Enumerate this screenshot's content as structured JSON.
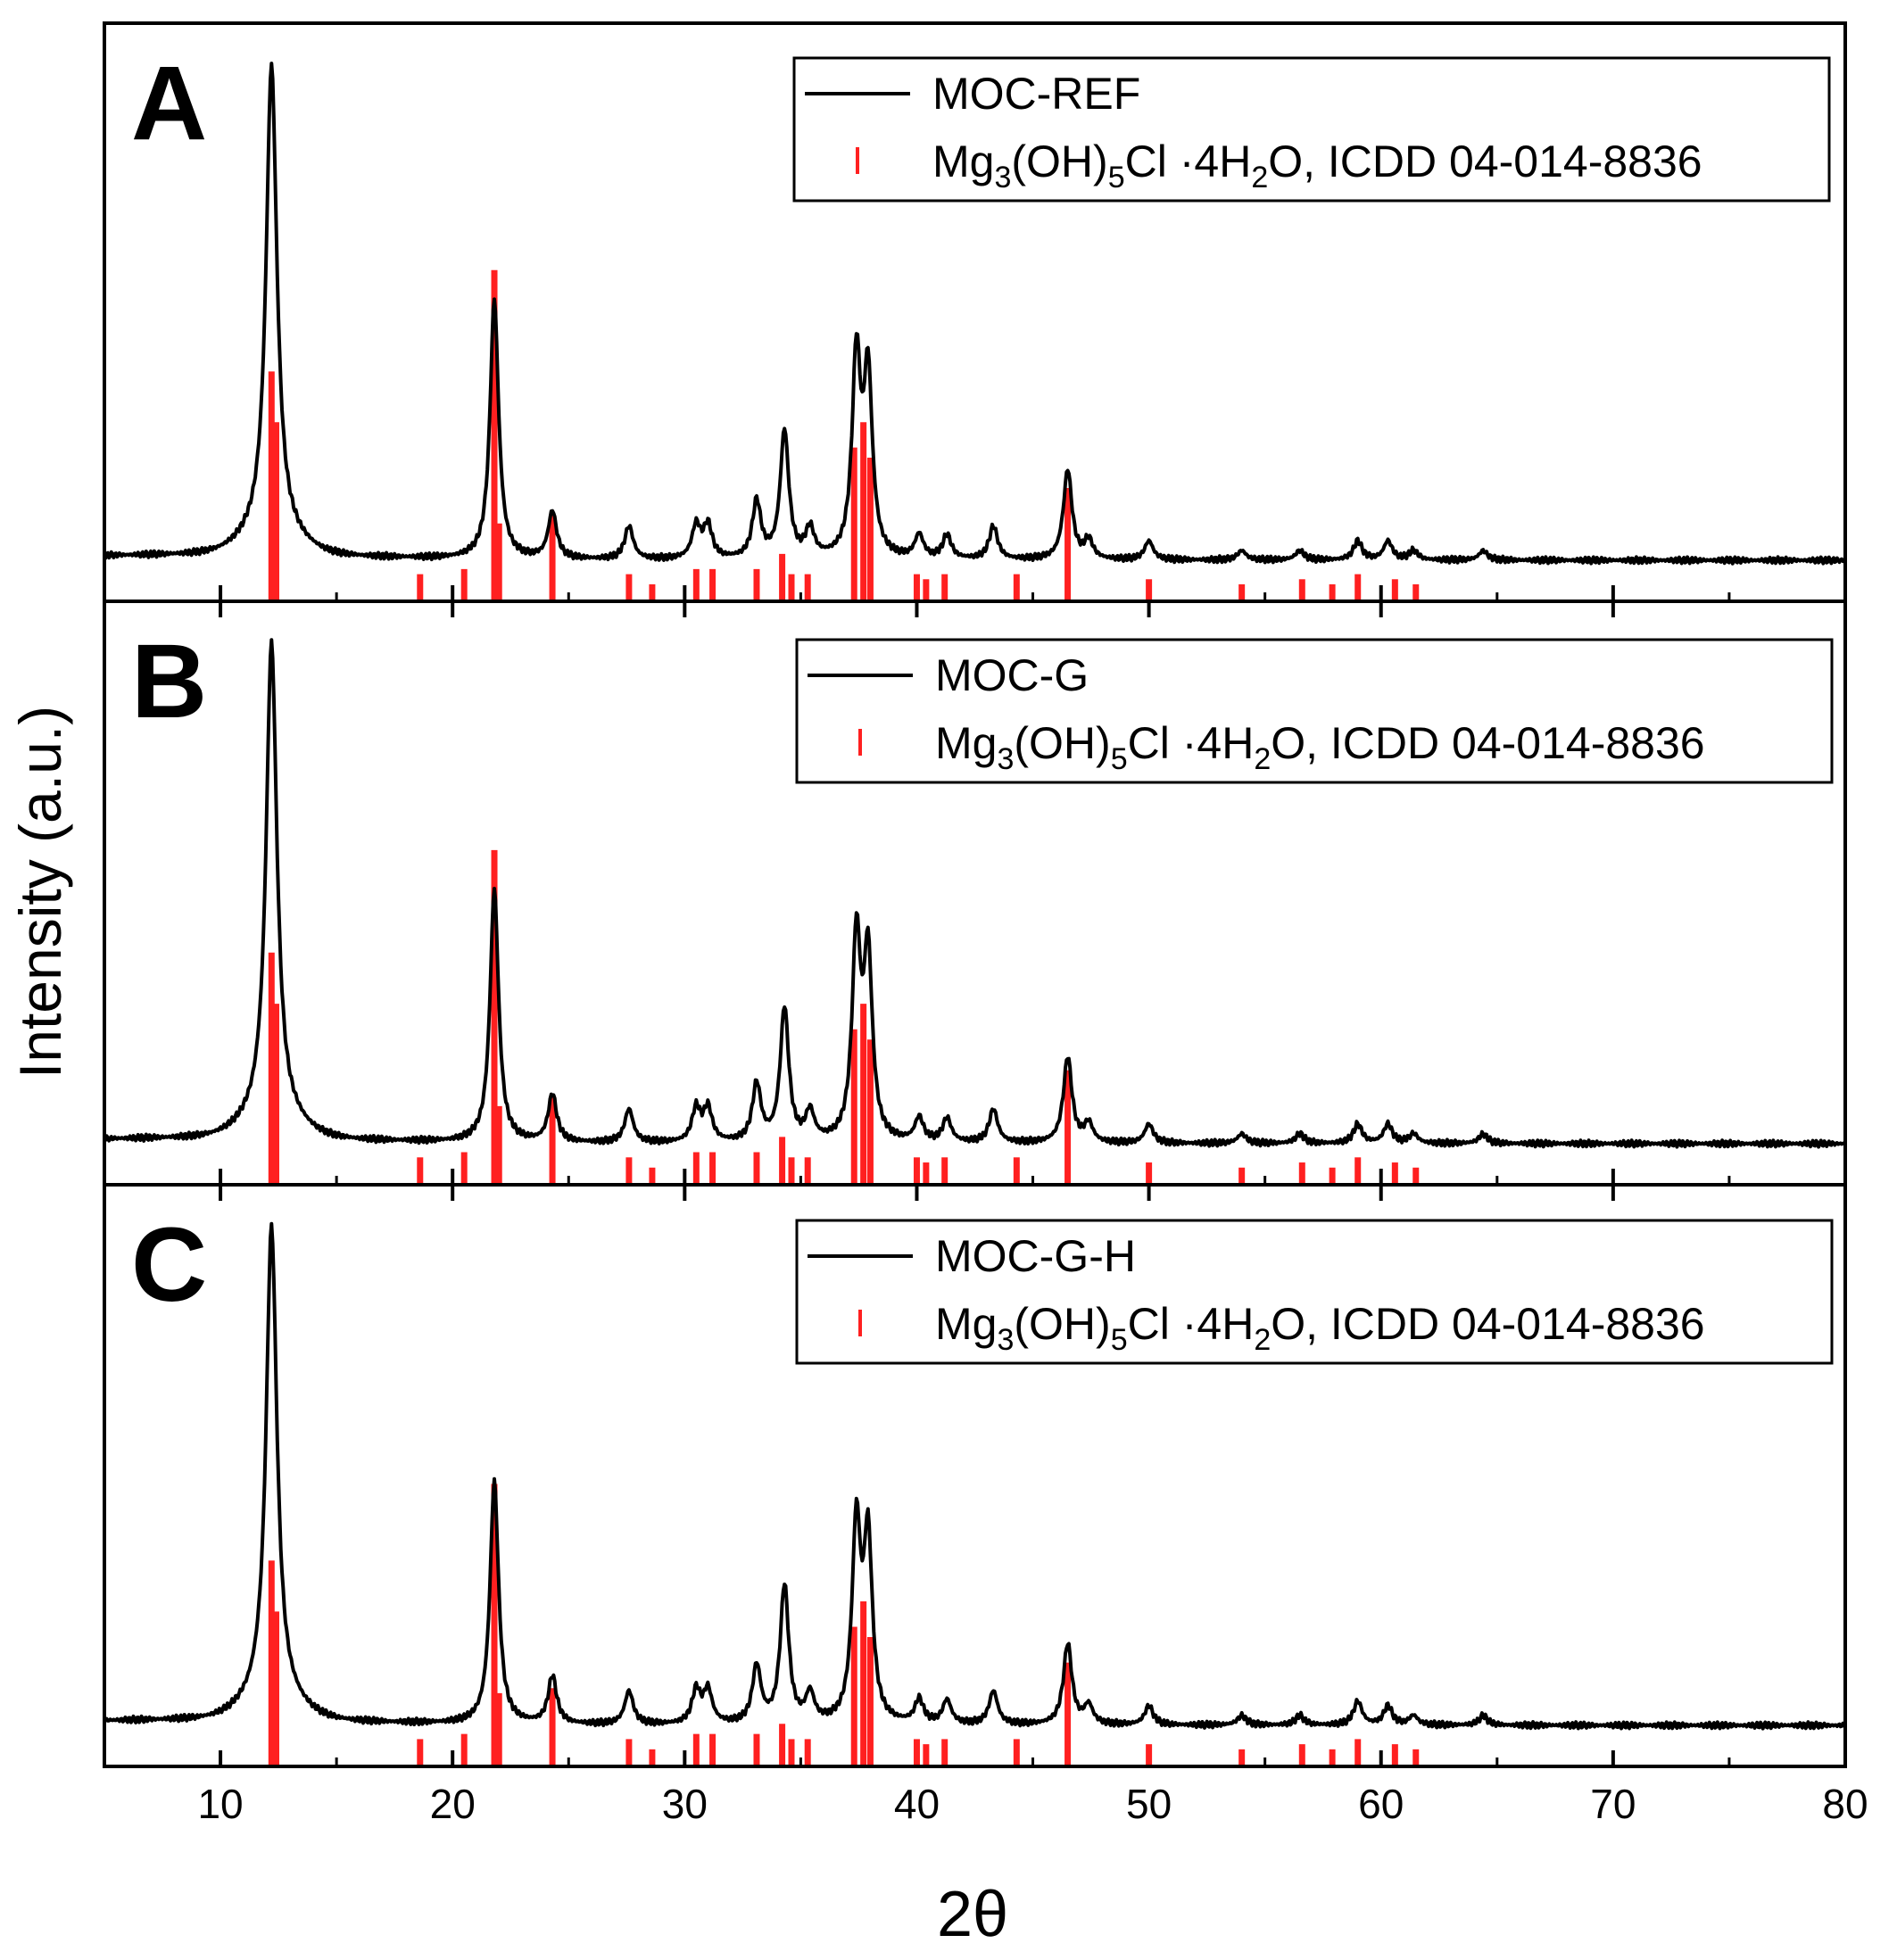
{
  "figure": {
    "ylabel": "Intensity (a.u.)",
    "xlabel": "2θ",
    "line_color": "#000000",
    "stick_color": "#ff2020"
  },
  "chart_data": [
    {
      "type": "line",
      "panel": "A",
      "xlim": [
        5,
        80
      ],
      "ylim": [
        0,
        1
      ],
      "xticks": [
        10,
        20,
        30,
        40,
        50,
        60,
        70,
        80
      ],
      "legend_position": "top-right",
      "series": [
        {
          "name": "MOC-REF",
          "kind": "line",
          "color": "#000000"
        },
        {
          "name": "Mg3(OH)5Cl ·4H2O, ICDD 04-014-8836",
          "kind": "sticks",
          "color": "#ff2020"
        }
      ],
      "legend": {
        "line_label": "MOC-REF",
        "stick_label_pre": "Mg",
        "stick_sub1": "3",
        "stick_mid1": "(OH)",
        "stick_sub2": "5",
        "stick_mid2": "Cl ·4H",
        "stick_sub3": "2",
        "stick_post": "O, ICDD 04-014-8836"
      },
      "peaks": [
        [
          12.2,
          1.0
        ],
        [
          21.8,
          0.55
        ],
        [
          24.3,
          0.1
        ],
        [
          27.6,
          0.07
        ],
        [
          30.5,
          0.07
        ],
        [
          31.0,
          0.07
        ],
        [
          33.1,
          0.12
        ],
        [
          34.3,
          0.27
        ],
        [
          35.4,
          0.06
        ],
        [
          37.4,
          0.42
        ],
        [
          37.9,
          0.38
        ],
        [
          40.1,
          0.05
        ],
        [
          41.3,
          0.05
        ],
        [
          43.3,
          0.07
        ],
        [
          46.5,
          0.19
        ],
        [
          47.4,
          0.04
        ],
        [
          50.0,
          0.04
        ],
        [
          54.0,
          0.02
        ],
        [
          56.5,
          0.02
        ],
        [
          59.0,
          0.04
        ],
        [
          60.3,
          0.04
        ],
        [
          61.4,
          0.02
        ],
        [
          64.4,
          0.02
        ]
      ],
      "sticks": [
        [
          12.2,
          0.45
        ],
        [
          12.4,
          0.35
        ],
        [
          18.6,
          0.05
        ],
        [
          20.5,
          0.06
        ],
        [
          21.8,
          0.65
        ],
        [
          22.0,
          0.15
        ],
        [
          24.3,
          0.17
        ],
        [
          27.6,
          0.05
        ],
        [
          28.6,
          0.03
        ],
        [
          30.5,
          0.06
        ],
        [
          31.2,
          0.06
        ],
        [
          33.1,
          0.06
        ],
        [
          34.2,
          0.09
        ],
        [
          34.6,
          0.05
        ],
        [
          35.3,
          0.05
        ],
        [
          37.3,
          0.3
        ],
        [
          37.7,
          0.35
        ],
        [
          38.0,
          0.28
        ],
        [
          40.0,
          0.05
        ],
        [
          40.4,
          0.04
        ],
        [
          41.2,
          0.05
        ],
        [
          44.3,
          0.05
        ],
        [
          46.5,
          0.22
        ],
        [
          50.0,
          0.04
        ],
        [
          54.0,
          0.03
        ],
        [
          56.6,
          0.04
        ],
        [
          57.9,
          0.03
        ],
        [
          59.0,
          0.05
        ],
        [
          60.6,
          0.04
        ],
        [
          61.5,
          0.03
        ]
      ]
    },
    {
      "type": "line",
      "panel": "B",
      "xlim": [
        5,
        80
      ],
      "ylim": [
        0,
        1
      ],
      "xticks": [
        10,
        20,
        30,
        40,
        50,
        60,
        70,
        80
      ],
      "legend_position": "top-right",
      "series": [
        {
          "name": "MOC-G",
          "kind": "line",
          "color": "#000000"
        },
        {
          "name": "Mg3(OH)5Cl ·4H2O, ICDD 04-014-8836",
          "kind": "sticks",
          "color": "#ff2020"
        }
      ],
      "legend": {
        "line_label": "MOC-G",
        "stick_label_pre": "Mg",
        "stick_sub1": "3",
        "stick_mid1": "(OH)",
        "stick_sub2": "5",
        "stick_mid2": "Cl ·4H",
        "stick_sub3": "2",
        "stick_post": "O, ICDD 04-014-8836"
      },
      "peaks": [
        [
          12.2,
          1.0
        ],
        [
          21.8,
          0.53
        ],
        [
          24.3,
          0.1
        ],
        [
          27.6,
          0.07
        ],
        [
          30.5,
          0.07
        ],
        [
          31.0,
          0.07
        ],
        [
          33.1,
          0.12
        ],
        [
          34.3,
          0.28
        ],
        [
          35.4,
          0.06
        ],
        [
          37.4,
          0.42
        ],
        [
          37.9,
          0.38
        ],
        [
          40.1,
          0.05
        ],
        [
          41.3,
          0.05
        ],
        [
          43.3,
          0.07
        ],
        [
          46.5,
          0.18
        ],
        [
          47.4,
          0.04
        ],
        [
          50.0,
          0.04
        ],
        [
          54.0,
          0.02
        ],
        [
          56.5,
          0.02
        ],
        [
          59.0,
          0.04
        ],
        [
          60.3,
          0.04
        ],
        [
          61.4,
          0.02
        ],
        [
          64.4,
          0.02
        ]
      ],
      "sticks": [
        [
          12.2,
          0.45
        ],
        [
          12.4,
          0.35
        ],
        [
          18.6,
          0.05
        ],
        [
          20.5,
          0.06
        ],
        [
          21.8,
          0.65
        ],
        [
          22.0,
          0.15
        ],
        [
          24.3,
          0.17
        ],
        [
          27.6,
          0.05
        ],
        [
          28.6,
          0.03
        ],
        [
          30.5,
          0.06
        ],
        [
          31.2,
          0.06
        ],
        [
          33.1,
          0.06
        ],
        [
          34.2,
          0.09
        ],
        [
          34.6,
          0.05
        ],
        [
          35.3,
          0.05
        ],
        [
          37.3,
          0.3
        ],
        [
          37.7,
          0.35
        ],
        [
          38.0,
          0.28
        ],
        [
          40.0,
          0.05
        ],
        [
          40.4,
          0.04
        ],
        [
          41.2,
          0.05
        ],
        [
          44.3,
          0.05
        ],
        [
          46.5,
          0.22
        ],
        [
          50.0,
          0.04
        ],
        [
          54.0,
          0.03
        ],
        [
          56.6,
          0.04
        ],
        [
          57.9,
          0.03
        ],
        [
          59.0,
          0.05
        ],
        [
          60.6,
          0.04
        ],
        [
          61.5,
          0.03
        ]
      ]
    },
    {
      "type": "line",
      "panel": "C",
      "xlim": [
        5,
        80
      ],
      "ylim": [
        0,
        1
      ],
      "xticks": [
        10,
        20,
        30,
        40,
        50,
        60,
        70,
        80
      ],
      "legend_position": "top-right",
      "series": [
        {
          "name": "MOC-G-H",
          "kind": "line",
          "color": "#000000"
        },
        {
          "name": "Mg3(OH)5Cl ·4H2O, ICDD 04-014-8836",
          "kind": "sticks",
          "color": "#ff2020"
        }
      ],
      "legend": {
        "line_label": "MOC-G-H",
        "stick_label_pre": "Mg",
        "stick_sub1": "3",
        "stick_mid1": "(OH)",
        "stick_sub2": "5",
        "stick_mid2": "Cl ·4H",
        "stick_sub3": "2",
        "stick_post": "O, ICDD 04-014-8836"
      },
      "peaks": [
        [
          12.2,
          1.0
        ],
        [
          21.8,
          0.51
        ],
        [
          24.3,
          0.1
        ],
        [
          27.6,
          0.07
        ],
        [
          30.5,
          0.07
        ],
        [
          31.0,
          0.07
        ],
        [
          33.1,
          0.12
        ],
        [
          34.3,
          0.29
        ],
        [
          35.4,
          0.06
        ],
        [
          37.4,
          0.41
        ],
        [
          37.9,
          0.38
        ],
        [
          40.1,
          0.05
        ],
        [
          41.3,
          0.05
        ],
        [
          43.3,
          0.07
        ],
        [
          46.5,
          0.17
        ],
        [
          47.4,
          0.04
        ],
        [
          50.0,
          0.04
        ],
        [
          54.0,
          0.02
        ],
        [
          56.5,
          0.02
        ],
        [
          59.0,
          0.05
        ],
        [
          60.3,
          0.04
        ],
        [
          61.4,
          0.02
        ],
        [
          64.4,
          0.02
        ]
      ],
      "sticks": [
        [
          12.2,
          0.4
        ],
        [
          12.4,
          0.3
        ],
        [
          18.6,
          0.05
        ],
        [
          20.5,
          0.06
        ],
        [
          21.8,
          0.55
        ],
        [
          22.0,
          0.14
        ],
        [
          24.3,
          0.15
        ],
        [
          27.6,
          0.05
        ],
        [
          28.6,
          0.03
        ],
        [
          30.5,
          0.06
        ],
        [
          31.2,
          0.06
        ],
        [
          33.1,
          0.06
        ],
        [
          34.2,
          0.08
        ],
        [
          34.6,
          0.05
        ],
        [
          35.3,
          0.05
        ],
        [
          37.3,
          0.27
        ],
        [
          37.7,
          0.32
        ],
        [
          38.0,
          0.25
        ],
        [
          40.0,
          0.05
        ],
        [
          40.4,
          0.04
        ],
        [
          41.2,
          0.05
        ],
        [
          44.3,
          0.05
        ],
        [
          46.5,
          0.2
        ],
        [
          50.0,
          0.04
        ],
        [
          54.0,
          0.03
        ],
        [
          56.6,
          0.04
        ],
        [
          57.9,
          0.03
        ],
        [
          59.0,
          0.05
        ],
        [
          60.6,
          0.04
        ],
        [
          61.5,
          0.03
        ]
      ]
    }
  ]
}
